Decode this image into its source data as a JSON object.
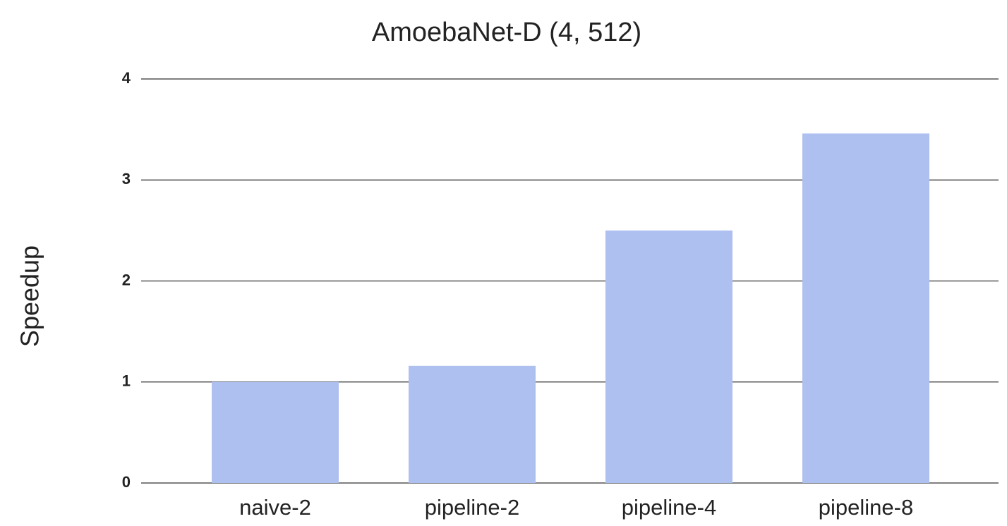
{
  "chart_data": {
    "type": "bar",
    "title": "AmoebaNet-D (4, 512)",
    "y_label": "Speedup",
    "categories": [
      "naive-2",
      "pipeline-2",
      "pipeline-4",
      "pipeline-8"
    ],
    "values": [
      1.0,
      1.16,
      2.5,
      3.46
    ],
    "color": "#aec0ef",
    "ylim": [
      0,
      4
    ],
    "yticks": [
      0,
      1,
      2,
      3,
      4
    ],
    "grid": true
  }
}
